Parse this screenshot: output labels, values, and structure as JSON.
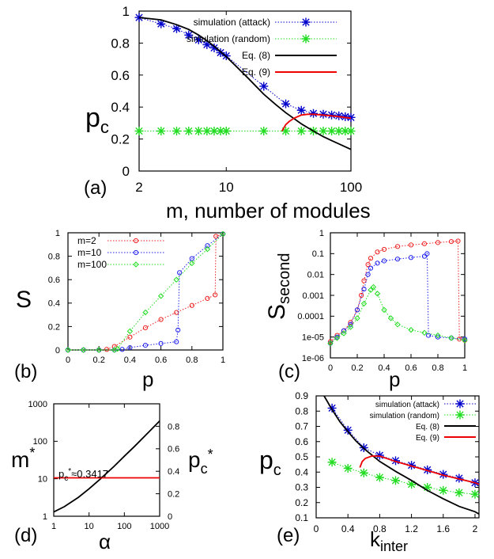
{
  "chart_data": [
    {
      "id": "a",
      "type": "line",
      "panel_label": "(a)",
      "xlabel": "m, number of modules",
      "ylabel": "p_c",
      "xscale": "log",
      "xlim": [
        2,
        100
      ],
      "ylim": [
        0,
        1
      ],
      "xticks": [
        2,
        10,
        100
      ],
      "xtick_labels": [
        "2",
        "10",
        "100"
      ],
      "yticks": [
        0,
        0.2,
        0.4,
        0.6,
        0.8,
        1
      ],
      "ytick_labels": [
        "0",
        "0.2",
        "0.4",
        "0.6",
        "0.8",
        "1"
      ],
      "legend": "top-right",
      "series": [
        {
          "name": "simulation (attack)",
          "color": "#0000cc",
          "style": "dotted",
          "marker": "asterisk",
          "x": [
            2,
            3,
            4,
            5,
            6,
            7,
            8,
            9,
            10,
            20,
            30,
            40,
            50,
            60,
            70,
            80,
            90,
            100
          ],
          "y": [
            0.96,
            0.92,
            0.89,
            0.85,
            0.82,
            0.79,
            0.77,
            0.74,
            0.72,
            0.53,
            0.42,
            0.38,
            0.36,
            0.355,
            0.35,
            0.345,
            0.34,
            0.335
          ]
        },
        {
          "name": "simulation (random)",
          "color": "#22dd22",
          "style": "dotted",
          "marker": "asterisk",
          "x": [
            2,
            3,
            4,
            5,
            6,
            7,
            8,
            9,
            10,
            20,
            30,
            40,
            50,
            60,
            70,
            80,
            90,
            100
          ],
          "y": [
            0.25,
            0.25,
            0.25,
            0.25,
            0.25,
            0.25,
            0.25,
            0.25,
            0.25,
            0.25,
            0.25,
            0.25,
            0.25,
            0.25,
            0.25,
            0.25,
            0.25,
            0.25
          ]
        },
        {
          "name": "Eq. (8)",
          "color": "#000000",
          "style": "solid",
          "marker": "none",
          "x": [
            2,
            3,
            4,
            5,
            6,
            7,
            8,
            10,
            12,
            15,
            20,
            25,
            30,
            40,
            50,
            60,
            70,
            80,
            100
          ],
          "y": [
            0.96,
            0.945,
            0.915,
            0.885,
            0.85,
            0.815,
            0.78,
            0.715,
            0.655,
            0.58,
            0.48,
            0.415,
            0.365,
            0.295,
            0.25,
            0.215,
            0.19,
            0.17,
            0.135
          ]
        },
        {
          "name": "Eq. (9)",
          "color": "#ee0000",
          "style": "solid",
          "marker": "none",
          "x": [
            28,
            30,
            32,
            35,
            40,
            45,
            50,
            60,
            70,
            80,
            100
          ],
          "y": [
            0.25,
            0.29,
            0.31,
            0.33,
            0.35,
            0.355,
            0.355,
            0.35,
            0.345,
            0.34,
            0.33
          ]
        }
      ]
    },
    {
      "id": "b",
      "type": "line",
      "panel_label": "(b)",
      "xlabel": "p",
      "ylabel": "S",
      "xlim": [
        0,
        1
      ],
      "ylim": [
        0,
        1
      ],
      "xticks": [
        0,
        0.2,
        0.4,
        0.6,
        0.8,
        1
      ],
      "xtick_labels": [
        "0",
        "0.2",
        "0.4",
        "0.6",
        "0.8",
        "1"
      ],
      "yticks": [
        0,
        0.2,
        0.4,
        0.6,
        0.8,
        1
      ],
      "ytick_labels": [
        "0",
        "0.2",
        "0.4",
        "0.6",
        "0.8",
        "1"
      ],
      "legend": "top-left",
      "series": [
        {
          "name": "m=2",
          "color": "#ee2222",
          "style": "dotted",
          "marker": "circle",
          "x": [
            0,
            0.1,
            0.2,
            0.25,
            0.3,
            0.4,
            0.5,
            0.6,
            0.7,
            0.8,
            0.9,
            0.95,
            0.955,
            1.0
          ],
          "y": [
            0,
            0,
            0,
            0.005,
            0.03,
            0.11,
            0.19,
            0.26,
            0.32,
            0.38,
            0.44,
            0.47,
            0.97,
            0.99
          ]
        },
        {
          "name": "m=10",
          "color": "#2222ee",
          "style": "dotted",
          "marker": "circle",
          "x": [
            0,
            0.1,
            0.2,
            0.3,
            0.35,
            0.4,
            0.5,
            0.6,
            0.7,
            0.71,
            0.72,
            0.8,
            0.9,
            1.0
          ],
          "y": [
            0,
            0,
            0,
            0,
            0.005,
            0.02,
            0.04,
            0.055,
            0.07,
            0.17,
            0.66,
            0.78,
            0.89,
            0.99
          ]
        },
        {
          "name": "m=100",
          "color": "#22dd22",
          "style": "dotted",
          "marker": "diamond",
          "x": [
            0,
            0.1,
            0.2,
            0.3,
            0.32,
            0.4,
            0.5,
            0.6,
            0.7,
            0.8,
            0.9,
            1.0
          ],
          "y": [
            0,
            0,
            0,
            0,
            0.01,
            0.16,
            0.32,
            0.46,
            0.6,
            0.74,
            0.86,
            0.99
          ]
        }
      ]
    },
    {
      "id": "c",
      "type": "line",
      "panel_label": "(c)",
      "xlabel": "p",
      "ylabel": "S_second",
      "xlim": [
        0,
        1
      ],
      "ylim": [
        1e-06,
        1
      ],
      "yscale": "log",
      "xticks": [
        0,
        0.2,
        0.4,
        0.6,
        0.8,
        1
      ],
      "xtick_labels": [
        "0",
        "0.2",
        "0.4",
        "0.6",
        "0.8",
        "1"
      ],
      "yticks": [
        1e-06,
        1e-05,
        0.0001,
        0.001,
        0.01,
        0.1,
        1
      ],
      "ytick_labels": [
        "1e-06",
        "1e-05",
        "0.0001",
        "0.001",
        "0.01",
        "0.1",
        "1"
      ],
      "series": [
        {
          "name": "m=2",
          "color": "#ee2222",
          "style": "dotted",
          "marker": "circle",
          "x": [
            0,
            0.05,
            0.1,
            0.15,
            0.2,
            0.23,
            0.25,
            0.28,
            0.3,
            0.35,
            0.4,
            0.5,
            0.6,
            0.7,
            0.8,
            0.9,
            0.95,
            0.96,
            1.0
          ],
          "y": [
            6e-06,
            1.2e-05,
            2e-05,
            5e-05,
            0.0002,
            0.001,
            0.005,
            0.03,
            0.06,
            0.12,
            0.16,
            0.22,
            0.26,
            0.3,
            0.34,
            0.38,
            0.4,
            8e-06,
            7e-06
          ]
        },
        {
          "name": "m=10",
          "color": "#2222ee",
          "style": "dotted",
          "marker": "circle",
          "x": [
            0,
            0.05,
            0.1,
            0.15,
            0.2,
            0.25,
            0.28,
            0.3,
            0.35,
            0.4,
            0.5,
            0.6,
            0.7,
            0.72,
            0.73,
            0.8,
            0.9,
            1.0
          ],
          "y": [
            5e-06,
            1e-05,
            2e-05,
            4e-05,
            0.0002,
            0.002,
            0.01,
            0.02,
            0.035,
            0.045,
            0.055,
            0.065,
            0.075,
            0.1,
            1.2e-05,
            1e-05,
            9e-06,
            8e-06
          ]
        },
        {
          "name": "m=100",
          "color": "#22dd22",
          "style": "dotted",
          "marker": "diamond",
          "x": [
            0,
            0.05,
            0.1,
            0.15,
            0.2,
            0.25,
            0.3,
            0.32,
            0.35,
            0.4,
            0.45,
            0.5,
            0.6,
            0.7,
            0.8,
            0.9,
            1.0
          ],
          "y": [
            5e-06,
            9e-06,
            1.5e-05,
            3e-05,
            8e-05,
            0.0004,
            0.0018,
            0.0025,
            0.0012,
            0.0002,
            8e-05,
            4e-05,
            2.2e-05,
            1.6e-05,
            1.2e-05,
            9e-06,
            7e-06
          ]
        }
      ]
    },
    {
      "id": "d",
      "type": "line",
      "panel_label": "(d)",
      "xlabel": "α",
      "ylabel": "m*",
      "y2label": "p_c*",
      "annotation": "p_c* ≈ 0.3417",
      "xscale": "log",
      "yscale": "log",
      "xlim": [
        1,
        1000
      ],
      "ylim": [
        1,
        1000
      ],
      "y2lim": [
        0,
        1
      ],
      "xticks": [
        1,
        10,
        100,
        1000
      ],
      "xtick_labels": [
        "1",
        "10",
        "100",
        "1000"
      ],
      "yticks": [
        1,
        10,
        100,
        1000
      ],
      "ytick_labels": [
        "1",
        "10",
        "100",
        "1000"
      ],
      "y2ticks": [
        0,
        0.2,
        0.4,
        0.6,
        0.8,
        1
      ],
      "y2tick_labels": [
        "0",
        "0.2",
        "0.4",
        "0.6",
        "0.8",
        ""
      ],
      "series": [
        {
          "name": "m*",
          "color": "#000000",
          "style": "solid",
          "axis": "left",
          "x": [
            1,
            2,
            5,
            10,
            20,
            50,
            100,
            200,
            500,
            1000
          ],
          "y": [
            1.3,
            1.8,
            3.2,
            5.4,
            9.5,
            21,
            40,
            75,
            180,
            350
          ]
        },
        {
          "name": "p_c*",
          "color": "#ee0000",
          "style": "solid",
          "axis": "right",
          "x": [
            1,
            1000
          ],
          "y": [
            0.3417,
            0.3417
          ]
        }
      ]
    },
    {
      "id": "e",
      "type": "line",
      "panel_label": "(e)",
      "xlabel": "k_inter",
      "ylabel": "p_c",
      "xlim": [
        0,
        2.05
      ],
      "ylim": [
        0.1,
        0.9
      ],
      "xticks": [
        0,
        0.4,
        0.8,
        1.2,
        1.6,
        2
      ],
      "xtick_labels": [
        "0",
        "0.4",
        "0.8",
        "1.2",
        "1.6",
        "2"
      ],
      "yticks": [
        0.1,
        0.2,
        0.3,
        0.4,
        0.5,
        0.6,
        0.7,
        0.8,
        0.9
      ],
      "ytick_labels": [
        "0.1",
        "0.2",
        "0.3",
        "0.4",
        "0.5",
        "0.6",
        "0.7",
        "0.8",
        "0.9"
      ],
      "legend": "top-right",
      "series": [
        {
          "name": "simulation (attack)",
          "color": "#0000cc",
          "style": "dotted",
          "marker": "asterisk",
          "x": [
            0.2,
            0.4,
            0.6,
            0.8,
            1.0,
            1.2,
            1.4,
            1.6,
            1.8,
            2.0
          ],
          "y": [
            0.82,
            0.675,
            0.56,
            0.51,
            0.475,
            0.445,
            0.415,
            0.385,
            0.36,
            0.33
          ]
        },
        {
          "name": "simulation (random)",
          "color": "#22dd22",
          "style": "dotted",
          "marker": "asterisk",
          "x": [
            0.2,
            0.4,
            0.6,
            0.8,
            1.0,
            1.2,
            1.4,
            1.6,
            1.8,
            2.0
          ],
          "y": [
            0.465,
            0.425,
            0.395,
            0.365,
            0.345,
            0.32,
            0.3,
            0.28,
            0.265,
            0.255
          ]
        },
        {
          "name": "Eq. (8)",
          "color": "#000000",
          "style": "solid",
          "marker": "none",
          "x": [
            0.1,
            0.2,
            0.3,
            0.4,
            0.5,
            0.6,
            0.8,
            1.0,
            1.2,
            1.4,
            1.6,
            1.8,
            2.0,
            2.05
          ],
          "y": [
            0.9,
            0.81,
            0.73,
            0.665,
            0.605,
            0.555,
            0.47,
            0.405,
            0.345,
            0.28,
            0.225,
            0.175,
            0.14,
            0.125
          ]
        },
        {
          "name": "Eq. (9)",
          "color": "#ee0000",
          "style": "solid",
          "marker": "none",
          "x": [
            0.55,
            0.58,
            0.62,
            0.7,
            0.8,
            1.0,
            1.2,
            1.4,
            1.6,
            1.8,
            2.0,
            2.05
          ],
          "y": [
            0.43,
            0.47,
            0.49,
            0.505,
            0.505,
            0.47,
            0.44,
            0.41,
            0.38,
            0.355,
            0.33,
            0.32
          ]
        }
      ]
    }
  ]
}
